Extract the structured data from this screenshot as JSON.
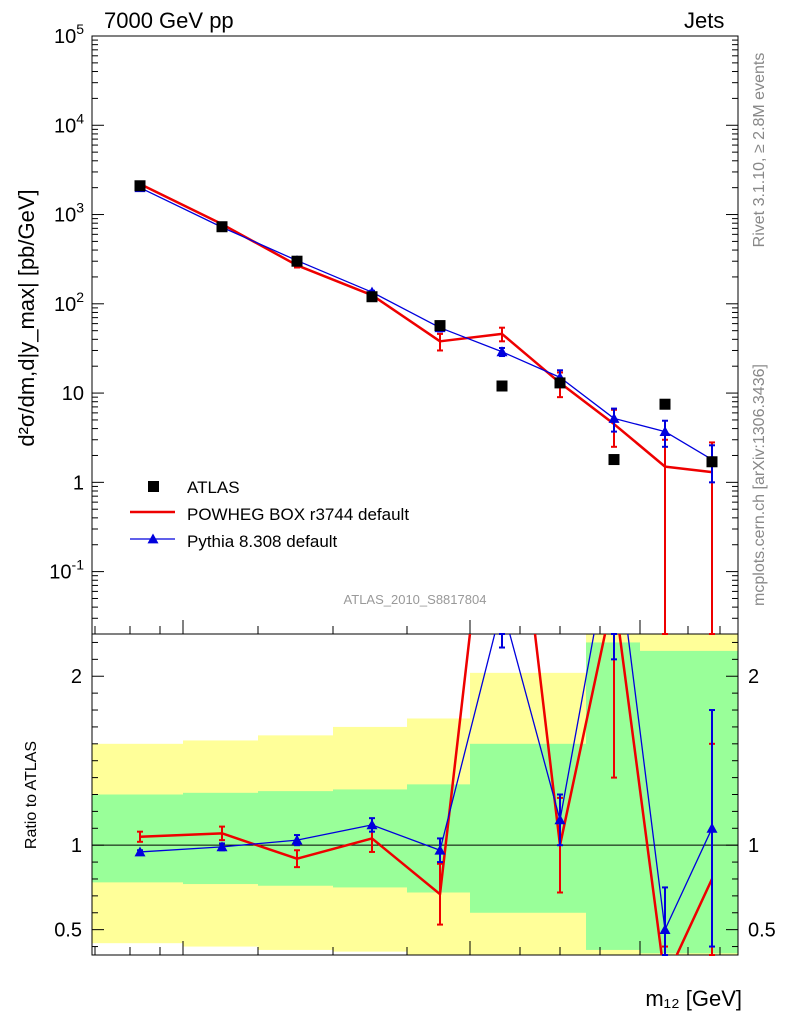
{
  "header": {
    "left": "7000 GeV pp",
    "right": "Jets"
  },
  "side_text": {
    "top": "Rivet 3.1.10, ≥ 2.8M events",
    "bottom": "mcplots.cern.ch [arXiv:1306.3436]"
  },
  "analysis_id": "ATLAS_2010_S8817804",
  "colors": {
    "data": "#000000",
    "powheg": "#ee0000",
    "pythia": "#0000dd",
    "band_inner": "#99ff99",
    "band_outer": "#ffff99"
  },
  "chart_data": {
    "type": "line",
    "main": {
      "ylabel_main": "d²σ/dm,d|y_max| [pb/GeV]",
      "yscale": "log",
      "ylim": [
        0.02,
        100000
      ],
      "y_ticks": [
        "10^-1",
        "1",
        "10",
        "10^2",
        "10^3",
        "10^4",
        "10^5"
      ],
      "x": [
        1,
        2,
        3,
        4,
        5,
        6,
        7,
        8,
        9,
        10
      ],
      "series": [
        {
          "name": "ATLAS",
          "marker": "square",
          "values": [
            2100,
            730,
            300,
            120,
            57,
            12,
            13,
            1.8,
            7.5,
            1.7
          ]
        },
        {
          "name": "POWHEG BOX r3744 default",
          "values": [
            2200,
            780,
            270,
            125,
            38,
            46,
            13,
            4.5,
            1.5,
            1.3
          ],
          "yerr": [
            80,
            30,
            15,
            8,
            8,
            8,
            4,
            2,
            1.5,
            1.5
          ]
        },
        {
          "name": "Pythia 8.308 default",
          "marker": "triangle",
          "values": [
            2000,
            720,
            305,
            135,
            54,
            29,
            15,
            5.2,
            3.7,
            1.8
          ],
          "yerr": [
            40,
            15,
            8,
            5,
            5,
            3,
            3,
            1.5,
            1.2,
            0.8
          ]
        }
      ]
    },
    "ratio": {
      "ylabel": "Ratio to ATLAS",
      "ylim": [
        0.35,
        2.25
      ],
      "y_ticks": [
        "0.5",
        "1",
        "2"
      ],
      "series": [
        {
          "name": "POWHEG BOX r3744 default",
          "values": [
            1.05,
            1.07,
            0.92,
            1.04,
            0.71,
            3.9,
            1.0,
            2.5,
            0.2,
            0.8
          ],
          "yerr": [
            0.03,
            0.04,
            0.05,
            0.08,
            0.18,
            0.7,
            0.28,
            1.1,
            0.2,
            0.8
          ]
        },
        {
          "name": "Pythia 8.308 default",
          "values": [
            0.96,
            0.99,
            1.03,
            1.12,
            0.97,
            2.42,
            1.15,
            2.9,
            0.5,
            1.1
          ],
          "yerr": [
            0.01,
            0.02,
            0.03,
            0.04,
            0.07,
            0.25,
            0.15,
            0.8,
            0.25,
            0.7
          ]
        }
      ],
      "bands": {
        "edges": [
          0.5,
          1.5,
          2.5,
          3.5,
          4.5,
          5.5,
          6.5,
          7.5,
          8.5,
          9.5,
          10.5
        ],
        "inner_low": [
          0.78,
          0.77,
          0.76,
          0.75,
          0.72,
          0.6,
          0.6,
          0.38,
          0.36,
          0.36
        ],
        "inner_high": [
          1.3,
          1.31,
          1.32,
          1.33,
          1.36,
          1.6,
          1.6,
          2.2,
          2.15,
          2.15
        ],
        "outer_low": [
          0.42,
          0.4,
          0.38,
          0.37,
          0.35,
          0.33,
          0.33,
          0.33,
          0.33,
          0.33
        ],
        "outer_high": [
          1.6,
          1.62,
          1.65,
          1.7,
          1.75,
          2.02,
          2.02,
          2.25,
          2.25,
          2.25
        ]
      }
    },
    "xlabel": "m₁₂ [GeV]"
  }
}
